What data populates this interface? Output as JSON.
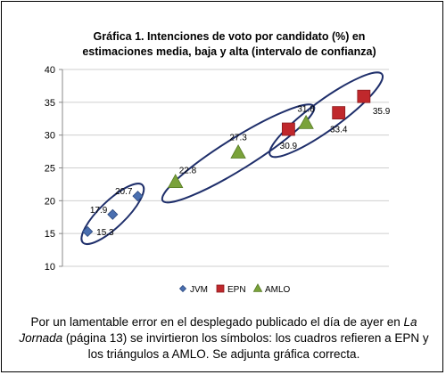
{
  "chart_data": {
    "type": "scatter",
    "title_line1": "Gráfica 1. Intenciones de voto por candidato (%) en",
    "title_line2": "estimaciones media, baja y alta (intervalo de confianza)",
    "ylim": [
      10,
      40
    ],
    "yticks": [
      "10",
      "15",
      "20",
      "25",
      "30",
      "35",
      "40"
    ],
    "grid": "horizontal",
    "legend_position": "bottom",
    "series": [
      {
        "name": "JVM",
        "marker": "diamond",
        "color": "#4a6fb0",
        "x": [
          1,
          2,
          3
        ],
        "values": [
          15.3,
          17.9,
          20.7
        ],
        "labels": [
          "15.3",
          "17.9",
          "20.7"
        ]
      },
      {
        "name": "EPN",
        "marker": "square",
        "color": "#c0282c",
        "x": [
          9,
          11,
          12
        ],
        "values": [
          30.9,
          33.4,
          35.9
        ],
        "labels": [
          "30.9",
          "33.4",
          "35.9"
        ]
      },
      {
        "name": "AMLO",
        "marker": "triangle",
        "color": "#7aa23a",
        "x": [
          4.5,
          7,
          9.7
        ],
        "values": [
          22.8,
          27.3,
          31.8
        ],
        "labels": [
          "22.8",
          "27.3",
          "31.8"
        ]
      }
    ]
  },
  "caption": {
    "part1": "Por un lamentable error en el desplegado publicado el día de ayer en ",
    "italic": "La Jornada",
    "part2": " (página 13) se invirtieron los símbolos: los cuadros refieren a EPN y los triángulos a AMLO. Se adjunta gráfica correcta."
  }
}
